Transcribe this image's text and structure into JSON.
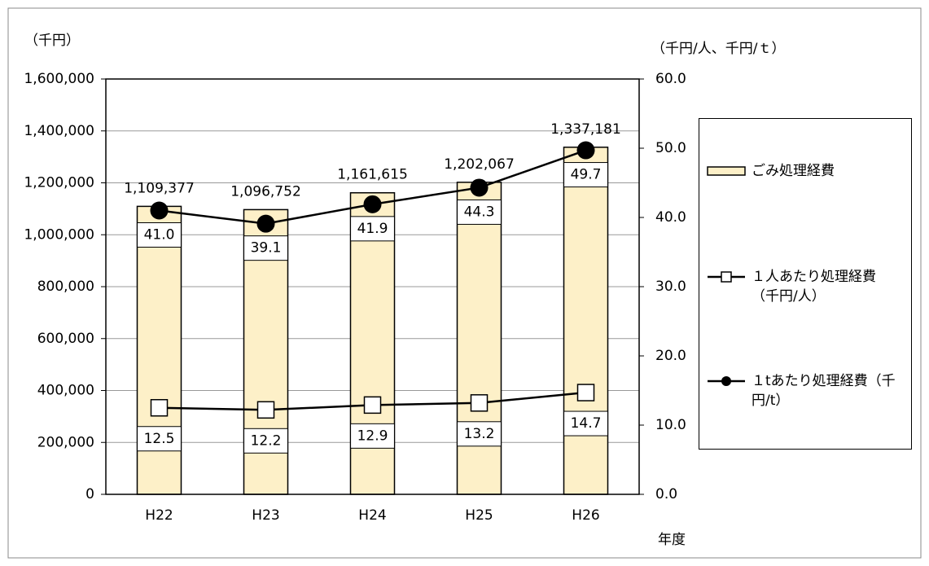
{
  "chart_data": {
    "type": "combo",
    "categories": [
      "H22",
      "H23",
      "H24",
      "H25",
      "H26"
    ],
    "y_label": "（千円）",
    "y2_label": "（千円/人、千円/ｔ）",
    "x_label": "年度",
    "ylim": [
      0,
      1600000
    ],
    "yticks": [
      0,
      {
        "value": 200000,
        "label": "200,000"
      },
      {
        "value": 400000,
        "label": "400,000"
      },
      {
        "value": 600000,
        "label": "600,000"
      },
      {
        "value": 800000,
        "label": "800,000"
      },
      {
        "value": 1000000,
        "label": "1,000,000"
      },
      {
        "value": 1200000,
        "label": "1,200,000"
      },
      {
        "value": 1400000,
        "label": "1,400,000"
      },
      {
        "value": 1600000,
        "label": "1,600,000"
      }
    ],
    "y2lim": [
      0,
      60
    ],
    "y2ticks": [
      {
        "value": 0,
        "label": "0.0"
      },
      {
        "value": 10,
        "label": "10.0"
      },
      {
        "value": 20,
        "label": "20.0"
      },
      {
        "value": 30,
        "label": "30.0"
      },
      {
        "value": 40,
        "label": "40.0"
      },
      {
        "value": 50,
        "label": "50.0"
      },
      {
        "value": 60,
        "label": "60.0"
      }
    ],
    "grid": true,
    "legend": "right",
    "series": [
      {
        "name": "ごみ処理経費",
        "type": "bar",
        "color": "#fdf0c8",
        "values": [
          1109377,
          1096752,
          1161615,
          1202067,
          1337181
        ],
        "value_labels": [
          "1,109,377",
          "1,096,752",
          "1,161,615",
          "1,202,067",
          "1,337,181"
        ]
      },
      {
        "name": "１人あたり処理経費（千円/人）",
        "type": "line",
        "axis": "y2",
        "marker": "square",
        "color": "#000000",
        "values": [
          12.5,
          12.2,
          12.9,
          13.2,
          14.7
        ]
      },
      {
        "name": "１tあたり処理経費（千円/t）",
        "type": "line",
        "axis": "y2",
        "marker": "circle",
        "color": "#000000",
        "values": [
          41.0,
          39.1,
          41.9,
          44.3,
          49.7
        ],
        "value_labels": [
          "41.0",
          "39.1",
          "41.9",
          "44.3",
          "49.7"
        ]
      }
    ]
  }
}
